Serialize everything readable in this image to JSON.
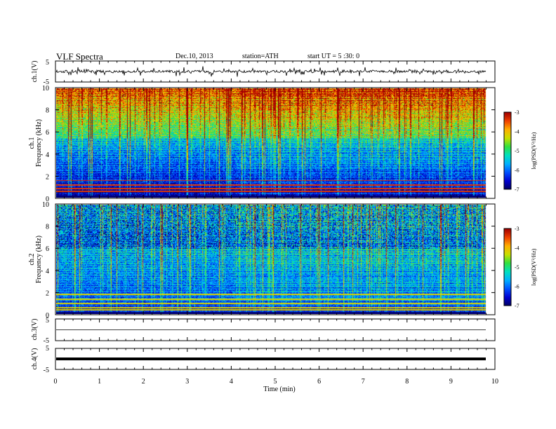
{
  "chart_data": {
    "type": "heatmap",
    "header": {
      "title": "VLF  Spectra",
      "date": "Dec.10, 2013",
      "station": "station=ATH",
      "start": "start  UT =   5  :30: 0"
    },
    "x_axis": {
      "label": "Time  (min)",
      "range": [
        0,
        10
      ],
      "ticks": [
        "0",
        "1",
        "2",
        "3",
        "4",
        "5",
        "6",
        "7",
        "8",
        "9",
        "10"
      ],
      "data_end": 9.8,
      "regime_change": 4.1
    },
    "waveform_panels": [
      {
        "ylabel": "ch.1(V)",
        "ylim": [
          -5,
          5
        ],
        "ticks": [
          "5",
          "-5"
        ],
        "style": "noisy",
        "spike_density": 0.18
      },
      {
        "ylabel": "ch.3(V)",
        "ylim": [
          -5,
          5
        ],
        "ticks": [
          "5",
          "-5"
        ],
        "style": "flat"
      },
      {
        "ylabel": "ch.4(V)",
        "ylim": [
          -5,
          5
        ],
        "ticks": [
          "5",
          "-5"
        ],
        "style": "thick"
      }
    ],
    "spectrogram_panels": [
      {
        "channel_label": "ch.1",
        "ylabel": "Frequency  (kHz)",
        "ylim": [
          0,
          10
        ],
        "yticks": [
          "0",
          "2",
          "4",
          "6",
          "8",
          "10"
        ],
        "colorbar": {
          "label": "log(PSD(V²/Hz)",
          "range": [
            -7,
            -3
          ],
          "ticks": [
            "-3",
            "-4",
            "-5",
            "-6",
            "-7"
          ]
        }
      },
      {
        "channel_label": "ch.2",
        "ylabel": "Frequency  (kHz)",
        "ylim": [
          0,
          10
        ],
        "yticks": [
          "0",
          "2",
          "4",
          "6",
          "8",
          "10"
        ],
        "colorbar": {
          "label": "log(PSD(V²/Hz)",
          "range": [
            -7,
            -3
          ],
          "ticks": [
            "-3",
            "-4",
            "-5",
            "-6",
            "-7"
          ]
        }
      }
    ],
    "colormap": [
      "#000060",
      "#0000d0",
      "#0050ff",
      "#00b0ff",
      "#00e0c0",
      "#30e040",
      "#c8e000",
      "#ffb000",
      "#f04000",
      "#a00000"
    ]
  }
}
